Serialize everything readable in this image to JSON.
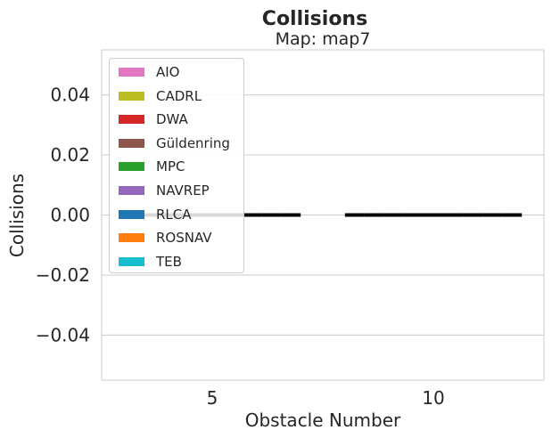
{
  "chart_data": {
    "type": "bar",
    "title": "Collisions",
    "subtitle": "Map: map7",
    "xlabel": "Obstacle Number",
    "ylabel": "Collisions",
    "categories": [
      "5",
      "10"
    ],
    "ylim": [
      -0.055,
      0.055
    ],
    "yticks": [
      0.04,
      0.02,
      0.0,
      -0.02,
      -0.04
    ],
    "ytick_labels": [
      "0.04",
      "0.02",
      "0.00",
      "−0.02",
      "−0.04"
    ],
    "grid": true,
    "legend_position": "upper-left",
    "series": [
      {
        "name": "AIO",
        "color": "#e377c2",
        "values": [
          0,
          0
        ]
      },
      {
        "name": "CADRL",
        "color": "#bcbd22",
        "values": [
          0,
          0
        ]
      },
      {
        "name": "DWA",
        "color": "#d62728",
        "values": [
          0,
          0
        ]
      },
      {
        "name": "Güldenring",
        "color": "#8c564b",
        "values": [
          0,
          0
        ]
      },
      {
        "name": "MPC",
        "color": "#2ca02c",
        "values": [
          0,
          0
        ]
      },
      {
        "name": "NAVREP",
        "color": "#9467bd",
        "values": [
          0,
          0
        ]
      },
      {
        "name": "RLCA",
        "color": "#1f77b4",
        "values": [
          0,
          0
        ]
      },
      {
        "name": "ROSNAV",
        "color": "#ff7f0e",
        "values": [
          0,
          0
        ]
      },
      {
        "name": "TEB",
        "color": "#17becf",
        "values": [
          0,
          0
        ]
      }
    ]
  }
}
